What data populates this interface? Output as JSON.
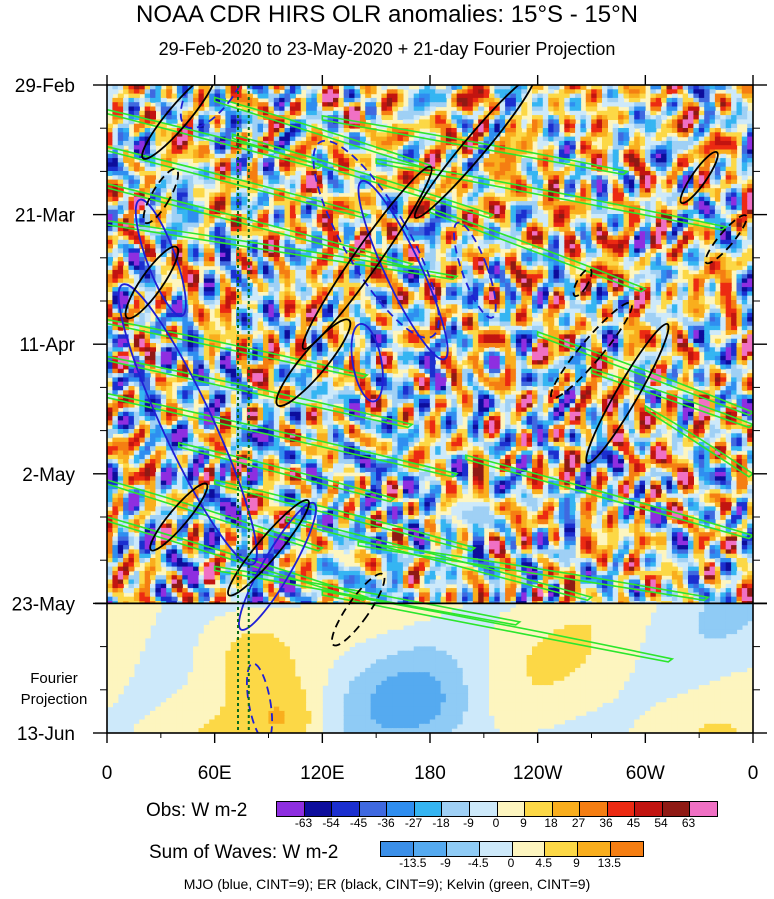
{
  "title": "NOAA CDR HIRS OLR anomalies: 15°S - 15°N",
  "subtitle": "29-Feb-2020 to 23-May-2020 + 21-day Fourier Projection",
  "footnote": "MJO (blue, CINT=9); ER (black, CINT=9); Kelvin (green, CINT=9)",
  "projection_label_lines": [
    "Fourier",
    "Projection"
  ],
  "chart_data": {
    "type": "heatmap",
    "x_tick_labels": [
      "0",
      "60E",
      "120E",
      "180",
      "120W",
      "60W",
      "0"
    ],
    "xlim": [
      0,
      360
    ],
    "y_tick_labels": [
      "29-Feb",
      "21-Mar",
      "11-Apr",
      "2-May",
      "23-May",
      "13-Jun"
    ],
    "y_tick_days": [
      0,
      21,
      42,
      63,
      84,
      105
    ],
    "ylim_days": [
      0,
      105
    ],
    "observation_end_label": "23-May",
    "reference_longitudes": [
      73,
      79
    ],
    "obs_legend": {
      "title": "Obs: W m-2",
      "levels": [
        "-63",
        "-54",
        "-45",
        "-36",
        "-27",
        "-18",
        "-9",
        "0",
        "9",
        "18",
        "27",
        "36",
        "45",
        "54",
        "63"
      ],
      "colors": [
        "#8e2ee0",
        "#0d0d9c",
        "#1b2fcf",
        "#3f69e0",
        "#2f8ef0",
        "#35b5f2",
        "#9fd0f5",
        "#cde9fa",
        "#fdf5bf",
        "#fcd846",
        "#f9ae1d",
        "#f57e12",
        "#ec2a12",
        "#c21410",
        "#8f1a14",
        "#f070c4"
      ]
    },
    "waves_legend": {
      "title": "Sum of Waves: W m-2",
      "levels": [
        "-13.5",
        "-9",
        "-4.5",
        "0",
        "4.5",
        "9",
        "13.5"
      ],
      "colors": [
        "#3b8fe8",
        "#55aaf0",
        "#8fcbf5",
        "#cde9fa",
        "#fdf5bf",
        "#fcd846",
        "#f9ae1d",
        "#f57e12"
      ]
    },
    "wave_contours": {
      "mjo_color": "#1f1fd6",
      "er_color": "#000000",
      "kelvin_color": "#2ce62c"
    }
  }
}
